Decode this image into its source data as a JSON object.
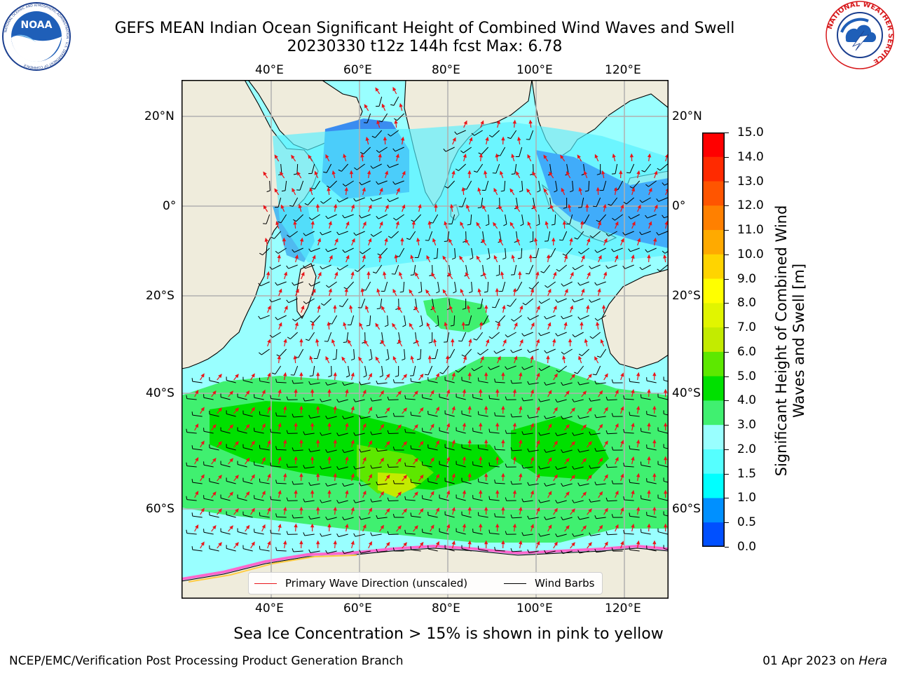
{
  "title": {
    "line1": "GEFS MEAN Indian Ocean Significant Height of Combined Wind Waves and Swell",
    "line2": "20230330 t12z 144h fcst   Max: 6.78"
  },
  "logos": {
    "left": "NOAA",
    "left_ring": "NATIONAL OCEANIC AND ATMOSPHERIC ADMINISTRATION · U.S. DEPARTMENT OF COMMERCE",
    "right_ring": "NATIONAL WEATHER SERVICE"
  },
  "map": {
    "lon_labels_top": [
      "40°E",
      "60°E",
      "80°E",
      "100°E",
      "120°E"
    ],
    "lon_labels_bottom": [
      "40°E",
      "60°E",
      "80°E",
      "100°E",
      "120°E"
    ],
    "lat_labels_left": [
      "20°N",
      "0°",
      "20°S",
      "40°S",
      "60°S"
    ],
    "lat_labels_right": [
      "20°N",
      "0°",
      "20°S",
      "40°S",
      "60°S"
    ],
    "colors": {
      "land": "#efecdc",
      "ocean_low": "#99ffff",
      "grid": "#b0b0b0",
      "arrow": "#e8161b",
      "barb": "#000000"
    }
  },
  "legend": {
    "primary_wave": "Primary Wave Direction (unscaled)",
    "wind_barbs": "Wind Barbs"
  },
  "colorbar": {
    "title": "Significant Height of Combined Wind Waves and Swell [m]",
    "ticks": [
      "15.0",
      "14.0",
      "13.0",
      "12.0",
      "11.0",
      "10.0",
      "9.0",
      "8.0",
      "7.0",
      "6.0",
      "5.0",
      "4.0",
      "3.0",
      "2.0",
      "1.5",
      "1.0",
      "0.5",
      "0.0"
    ],
    "colors": [
      "#ff0000",
      "#ff2a00",
      "#ff5500",
      "#ff8000",
      "#ffaa00",
      "#ffd400",
      "#ffff00",
      "#e1f500",
      "#c3eb00",
      "#5de800",
      "#00e000",
      "#40f070",
      "#99ffff",
      "#55ffff",
      "#00ffff",
      "#0090ff",
      "#0050ff",
      "#0000ff"
    ]
  },
  "footer": {
    "note": "Sea Ice Concentration > 15% is shown in pink to yellow",
    "left": "NCEP/EMC/Verification Post Processing Product Generation Branch",
    "right_date": "01 Apr 2023 on ",
    "right_host": "Hera"
  }
}
